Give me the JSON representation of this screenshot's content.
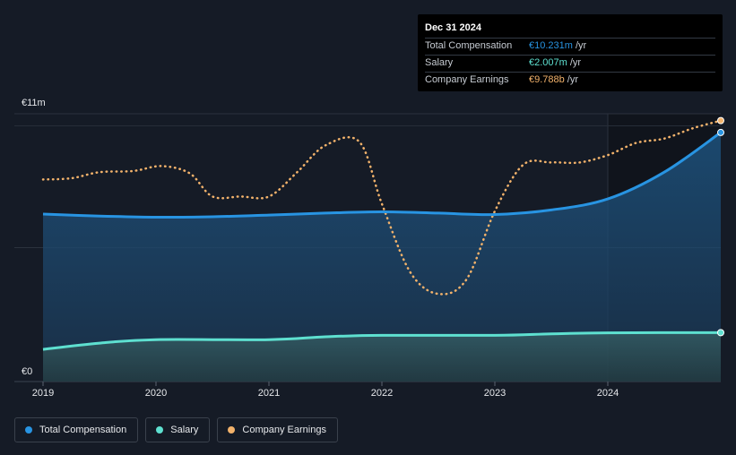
{
  "colors": {
    "background": "#151b26",
    "forecast_band": "#0f141c",
    "total_compensation": "#2894e2",
    "salary": "#5ee0d0",
    "company_earnings": "#f2b26b"
  },
  "tooltip": {
    "date": "Dec 31 2024",
    "rows": [
      {
        "label": "Total Compensation",
        "value": "€10.231m",
        "unit": "/yr",
        "color": "#2894e2"
      },
      {
        "label": "Salary",
        "value": "€2.007m",
        "unit": "/yr",
        "color": "#5ee0d0"
      },
      {
        "label": "Company Earnings",
        "value": "€9.788b",
        "unit": "/yr",
        "color": "#f2b26b"
      }
    ]
  },
  "legend": [
    {
      "label": "Total Compensation",
      "color": "#2894e2"
    },
    {
      "label": "Salary",
      "color": "#5ee0d0"
    },
    {
      "label": "Company Earnings",
      "color": "#f2b26b"
    }
  ],
  "chart_data": {
    "type": "area",
    "title": "",
    "xlabel": "",
    "ylabel": "",
    "x_ticks": [
      "2019",
      "2020",
      "2021",
      "2022",
      "2023",
      "2024"
    ],
    "x_tick_values": [
      2019,
      2020,
      2021,
      2022,
      2023,
      2024
    ],
    "xlim": [
      2019,
      2025
    ],
    "y_ticks": [
      {
        "value": 0,
        "label": "€0"
      },
      {
        "value": 11,
        "label": "€11m"
      }
    ],
    "ylim": [
      0,
      11
    ],
    "forecast_start": 2024,
    "series": [
      {
        "name": "Total Compensation",
        "unit": "€m",
        "points": [
          [
            2019.0,
            6.88
          ],
          [
            2019.5,
            6.8
          ],
          [
            2020.0,
            6.75
          ],
          [
            2020.5,
            6.77
          ],
          [
            2021.0,
            6.84
          ],
          [
            2021.5,
            6.92
          ],
          [
            2022.0,
            6.97
          ],
          [
            2022.5,
            6.92
          ],
          [
            2023.0,
            6.86
          ],
          [
            2023.5,
            7.05
          ],
          [
            2024.0,
            7.5
          ],
          [
            2024.5,
            8.6
          ],
          [
            2025.0,
            10.23
          ]
        ]
      },
      {
        "name": "Salary",
        "unit": "€m",
        "points": [
          [
            2019.0,
            1.32
          ],
          [
            2019.5,
            1.58
          ],
          [
            2020.0,
            1.72
          ],
          [
            2021.0,
            1.72
          ],
          [
            2021.5,
            1.84
          ],
          [
            2022.0,
            1.9
          ],
          [
            2023.0,
            1.9
          ],
          [
            2023.5,
            1.96
          ],
          [
            2024.0,
            2.0
          ],
          [
            2025.0,
            2.01
          ]
        ]
      },
      {
        "name": "Company Earnings",
        "unit": "€b (scaled)",
        "points": [
          [
            2019.0,
            8.3
          ],
          [
            2019.25,
            8.35
          ],
          [
            2019.5,
            8.6
          ],
          [
            2019.8,
            8.65
          ],
          [
            2020.05,
            8.85
          ],
          [
            2020.3,
            8.55
          ],
          [
            2020.5,
            7.6
          ],
          [
            2020.75,
            7.6
          ],
          [
            2021.0,
            7.6
          ],
          [
            2021.25,
            8.6
          ],
          [
            2021.5,
            9.7
          ],
          [
            2021.8,
            9.85
          ],
          [
            2022.0,
            7.3
          ],
          [
            2022.25,
            4.5
          ],
          [
            2022.5,
            3.6
          ],
          [
            2022.75,
            4.2
          ],
          [
            2023.0,
            7.0
          ],
          [
            2023.25,
            8.9
          ],
          [
            2023.5,
            9.0
          ],
          [
            2023.75,
            9.0
          ],
          [
            2024.0,
            9.3
          ],
          [
            2024.25,
            9.8
          ],
          [
            2024.5,
            9.98
          ],
          [
            2024.75,
            10.4
          ],
          [
            2025.0,
            10.72
          ]
        ]
      }
    ]
  }
}
